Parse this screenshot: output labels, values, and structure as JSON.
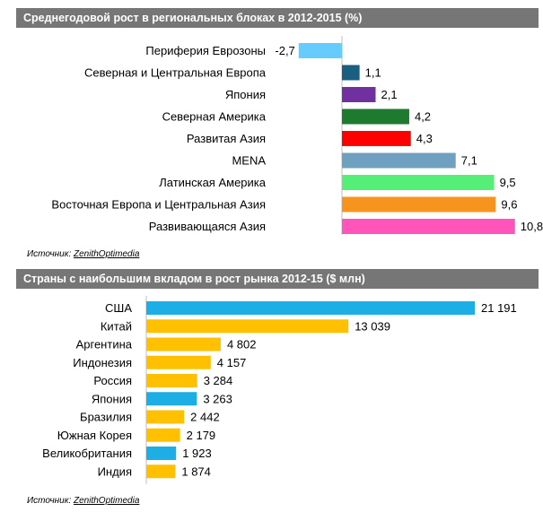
{
  "chart_data": [
    {
      "type": "bar",
      "orientation": "horizontal",
      "title": "Среднегодовой рост в региональных блоках в 2012-2015 (%)",
      "categories": [
        "Периферия Еврозоны",
        "Северная и Центральная Европа",
        "Япония",
        "Северная Америка",
        "Развитая Азия",
        "MENA",
        "Латинская Америка",
        "Восточная Европа и Центральная Азия",
        "Развивающаяся Азия"
      ],
      "values": [
        -2.7,
        1.1,
        2.1,
        4.2,
        4.3,
        7.1,
        9.5,
        9.6,
        10.8
      ],
      "value_labels": [
        "-2,7",
        "1,1",
        "2,1",
        "4,2",
        "4,3",
        "7,1",
        "9,5",
        "9,6",
        "10,8"
      ],
      "colors": [
        "#66ccff",
        "#1a5e80",
        "#7030a0",
        "#1e7a2e",
        "#ff0000",
        "#6fa0bf",
        "#55ee77",
        "#f7941d",
        "#ff55bb"
      ],
      "source_label": "Источник:",
      "source_name": "ZenithOptimedia"
    },
    {
      "type": "bar",
      "orientation": "horizontal",
      "title": "Страны с наибольшим вкладом в рост рынка 2012-15  ($ млн)",
      "categories": [
        "США",
        "Китай",
        "Аргентина",
        "Индонезия",
        "Россия",
        "Япония",
        "Бразилия",
        "Южная Корея",
        "Великобритания",
        "Индия"
      ],
      "values": [
        21191,
        13039,
        4802,
        4157,
        3284,
        3263,
        2442,
        2179,
        1923,
        1874
      ],
      "value_labels": [
        "21 191",
        "13 039",
        "4 802",
        "4 157",
        "3 284",
        "3 263",
        "2 442",
        "2 179",
        "1 923",
        "1 874"
      ],
      "colors": [
        "#1eaee6",
        "#ffc000",
        "#ffc000",
        "#ffc000",
        "#ffc000",
        "#1eaee6",
        "#ffc000",
        "#ffc000",
        "#1eaee6",
        "#ffc000"
      ],
      "source_label": "Источник:",
      "source_name": "ZenithOptimedia"
    }
  ]
}
